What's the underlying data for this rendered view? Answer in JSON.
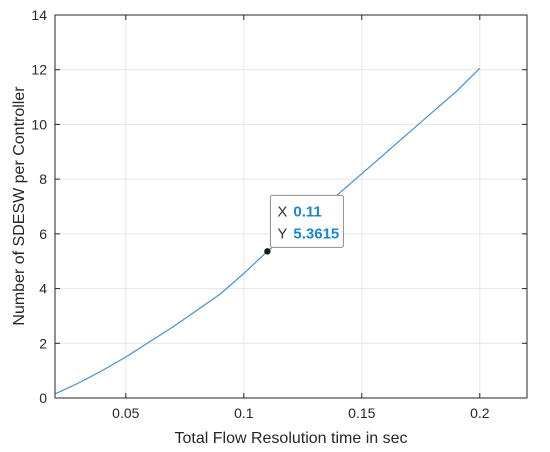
{
  "chart_data": {
    "type": "line",
    "title": "",
    "xlabel": "Total Flow Resolution time in sec",
    "ylabel": "Number of SDESW per Controller",
    "xlim": [
      0.02,
      0.22
    ],
    "ylim": [
      0,
      14
    ],
    "xticks": [
      0.05,
      0.1,
      0.15,
      0.2
    ],
    "xtick_labels": [
      "0.05",
      "0.1",
      "0.15",
      "0.2"
    ],
    "yticks": [
      0,
      2,
      4,
      6,
      8,
      10,
      12,
      14
    ],
    "ytick_labels": [
      "0",
      "2",
      "4",
      "6",
      "8",
      "10",
      "12",
      "14"
    ],
    "grid": true,
    "series": [
      {
        "color": "#4a8fd0",
        "x": [
          0.02,
          0.03,
          0.04,
          0.05,
          0.06,
          0.07,
          0.08,
          0.09,
          0.1,
          0.11,
          0.12,
          0.13,
          0.14,
          0.15,
          0.16,
          0.17,
          0.18,
          0.19,
          0.2
        ],
        "y": [
          0.15,
          0.55,
          1.0,
          1.5,
          2.05,
          2.6,
          3.2,
          3.8,
          4.55,
          5.3615,
          6.05,
          6.75,
          7.45,
          8.2,
          8.95,
          9.7,
          10.45,
          11.2,
          12.05
        ]
      }
    ],
    "datatip": {
      "x_key": "X",
      "x_value": "0.11",
      "y_key": "Y",
      "y_value": "5.3615",
      "value_color": "#1a86d0"
    }
  }
}
